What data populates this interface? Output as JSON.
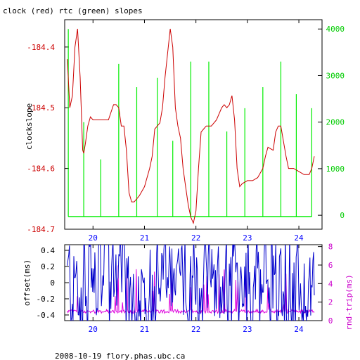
{
  "chart_data": [
    {
      "type": "line",
      "title": "clock (red) rtc (green) slopes",
      "ylabel": "clockslope",
      "xlabel": "",
      "x_ticks": [
        "20",
        "21",
        "22",
        "23",
        "24"
      ],
      "x_range": [
        19.45,
        24.45
      ],
      "y_left_ticks": [
        "-184.4",
        "-184.5",
        "-184.6",
        "-184.7"
      ],
      "y_left_range": [
        -184.7,
        -184.355
      ],
      "y_right_ticks": [
        "0",
        "1000",
        "2000",
        "3000",
        "4000"
      ],
      "y_right_range": [
        -300,
        4200
      ],
      "colors": {
        "clock": "#cc0000",
        "rtc": "#00ee00",
        "axis_left": "#cc0000",
        "axis_right": "#00cc00",
        "x_axis": "#0000ff"
      },
      "series": [
        {
          "name": "clock",
          "axis": "left",
          "x": [
            19.5,
            19.55,
            19.6,
            19.65,
            19.7,
            19.75,
            19.8,
            19.82,
            19.85,
            19.9,
            19.95,
            20.0,
            20.05,
            20.1,
            20.2,
            20.3,
            20.4,
            20.45,
            20.5,
            20.55,
            20.6,
            20.65,
            20.7,
            20.75,
            20.8,
            20.85,
            20.9,
            21.0,
            21.1,
            21.15,
            21.2,
            21.25,
            21.3,
            21.35,
            21.4,
            21.45,
            21.5,
            21.55,
            21.6,
            21.65,
            21.7,
            21.75,
            21.8,
            21.85,
            21.9,
            21.95,
            22.0,
            22.05,
            22.1,
            22.15,
            22.2,
            22.3,
            22.4,
            22.5,
            22.55,
            22.6,
            22.65,
            22.7,
            22.75,
            22.8,
            22.85,
            22.9,
            23.0,
            23.1,
            23.2,
            23.3,
            23.35,
            23.4,
            23.5,
            23.55,
            23.6,
            23.65,
            23.7,
            23.75,
            23.8,
            23.85,
            23.9,
            24.0,
            24.1,
            24.2,
            24.25,
            24.3
          ],
          "y": [
            -184.42,
            -184.5,
            -184.48,
            -184.4,
            -184.37,
            -184.45,
            -184.57,
            -184.575,
            -184.56,
            -184.53,
            -184.515,
            -184.52,
            -184.52,
            -184.52,
            -184.52,
            -184.52,
            -184.495,
            -184.495,
            -184.5,
            -184.53,
            -184.53,
            -184.57,
            -184.64,
            -184.655,
            -184.655,
            -184.65,
            -184.645,
            -184.63,
            -184.6,
            -184.58,
            -184.535,
            -184.53,
            -184.525,
            -184.5,
            -184.45,
            -184.41,
            -184.37,
            -184.4,
            -184.5,
            -184.53,
            -184.55,
            -184.6,
            -184.63,
            -184.66,
            -184.68,
            -184.69,
            -184.67,
            -184.6,
            -184.54,
            -184.535,
            -184.53,
            -184.53,
            -184.52,
            -184.5,
            -184.495,
            -184.5,
            -184.495,
            -184.48,
            -184.52,
            -184.6,
            -184.63,
            -184.625,
            -184.62,
            -184.62,
            -184.615,
            -184.6,
            -184.58,
            -184.565,
            -184.57,
            -184.54,
            -184.53,
            -184.53,
            -184.555,
            -184.58,
            -184.6,
            -184.6,
            -184.6,
            -184.605,
            -184.61,
            -184.61,
            -184.6,
            -184.58
          ]
        },
        {
          "name": "rtc",
          "axis": "right",
          "spike_x": [
            19.52,
            19.82,
            20.15,
            20.5,
            20.85,
            21.25,
            21.55,
            21.9,
            22.25,
            22.6,
            22.95,
            23.3,
            23.65,
            23.95,
            24.25
          ],
          "spike_y": [
            4000,
            2000,
            1200,
            3250,
            2750,
            2950,
            1600,
            3300,
            3300,
            1800,
            2300,
            2750,
            3300,
            2600,
            2300
          ],
          "baseline": -30
        }
      ]
    },
    {
      "type": "line",
      "title": "",
      "ylabel": "offset(ms)",
      "y2label": "rnd-trip(ms)",
      "x_ticks": [
        "20",
        "21",
        "22",
        "23",
        "24"
      ],
      "x_range": [
        19.45,
        24.45
      ],
      "y_left_ticks": [
        "0.4",
        "0.2",
        "0",
        "-0.2",
        "-0.4"
      ],
      "y_left_range": [
        -0.47,
        0.47
      ],
      "y_right_ticks": [
        "0",
        "2",
        "4",
        "6",
        "8"
      ],
      "y_right_range": [
        0,
        8.2
      ],
      "colors": {
        "offset": "#0000cc",
        "rnd_trip": "#dd00dd",
        "axis_left": "#000000",
        "axis_right": "#cc00cc",
        "x_axis": "#0000ff"
      },
      "series": [
        {
          "name": "offset",
          "axis": "left",
          "color": "#0000cc"
        },
        {
          "name": "rnd-trip",
          "axis": "right",
          "color": "#dd00dd"
        }
      ]
    }
  ],
  "footer": "2008-10-19 flory.phas.ubc.ca"
}
